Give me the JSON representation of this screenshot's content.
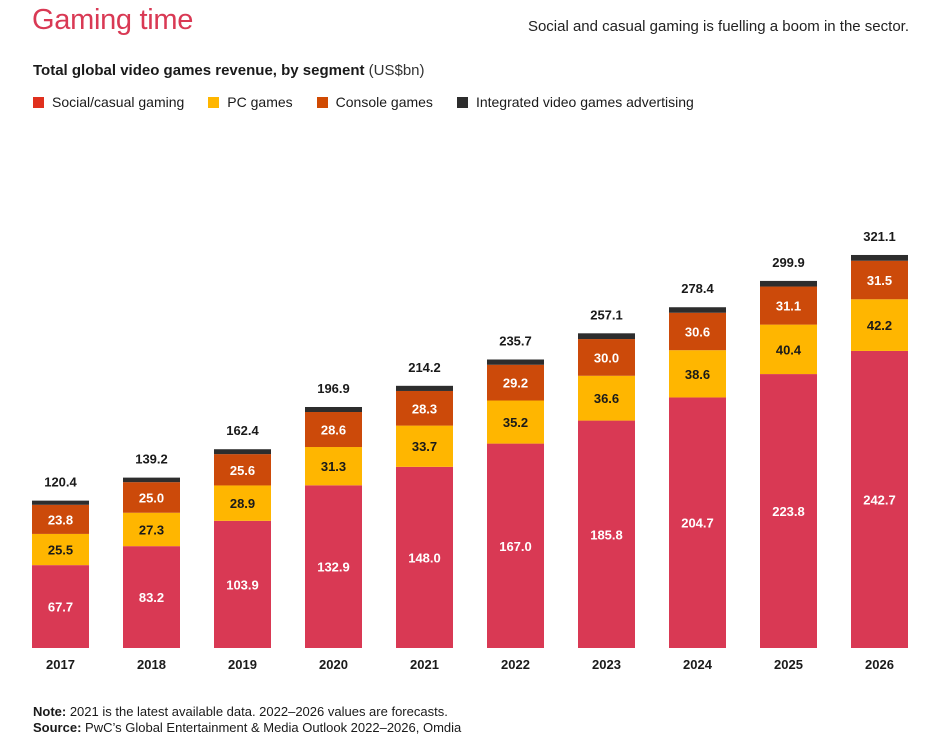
{
  "header": {
    "title": "Gaming time",
    "tagline": "Social and casual gaming is fuelling a boom in the sector."
  },
  "subtitle": {
    "main": "Total global video games revenue, by segment",
    "unit": "(US$bn)"
  },
  "colors": {
    "title": "#d93954",
    "social": "#d93954",
    "pc": "#ffb600",
    "console": "#d04a02",
    "advertising": "#2d2d2d"
  },
  "legend": [
    {
      "label": "Social/casual gaming",
      "color": "#e0301e"
    },
    {
      "label": "PC games",
      "color": "#ffb600"
    },
    {
      "label": "Console games",
      "color": "#d04a02"
    },
    {
      "label": "Integrated video games advertising",
      "color": "#2d2d2d"
    }
  ],
  "chart_data": {
    "type": "bar",
    "stacked": true,
    "categories": [
      "2017",
      "2018",
      "2019",
      "2020",
      "2021",
      "2022",
      "2023",
      "2024",
      "2025",
      "2026"
    ],
    "series": [
      {
        "name": "Social/casual gaming",
        "values": [
          67.7,
          83.2,
          103.9,
          132.9,
          148.0,
          167.0,
          185.8,
          204.7,
          223.8,
          242.7
        ],
        "labels": [
          "67.7",
          "83.2",
          "103.9",
          "132.9",
          "148.0",
          "167.0",
          "185.8",
          "204.7",
          "223.8",
          "242.7"
        ]
      },
      {
        "name": "PC games",
        "values": [
          25.5,
          27.3,
          28.9,
          31.3,
          33.7,
          35.2,
          36.6,
          38.6,
          40.4,
          42.2
        ],
        "labels": [
          "25.5",
          "27.3",
          "28.9",
          "31.3",
          "33.7",
          "35.2",
          "36.6",
          "38.6",
          "40.4",
          "42.2"
        ]
      },
      {
        "name": "Console games",
        "values": [
          23.8,
          25.0,
          25.6,
          28.6,
          28.3,
          29.2,
          30.0,
          30.6,
          31.1,
          31.5
        ],
        "labels": [
          "23.8",
          "25.0",
          "25.6",
          "28.6",
          "28.3",
          "29.2",
          "30.0",
          "30.6",
          "31.1",
          "31.5"
        ]
      },
      {
        "name": "Integrated video games advertising",
        "values": [
          3.4,
          3.7,
          4.0,
          4.1,
          4.2,
          4.3,
          4.7,
          4.5,
          4.6,
          4.7
        ]
      }
    ],
    "totals": [
      120.4,
      139.2,
      162.4,
      196.9,
      214.2,
      235.7,
      257.1,
      278.4,
      299.9,
      321.1
    ],
    "total_labels": [
      "120.4",
      "139.2",
      "162.4",
      "196.9",
      "214.2",
      "235.7",
      "257.1",
      "278.4",
      "299.9",
      "321.1"
    ],
    "ylim": [
      0,
      325
    ],
    "grid": false,
    "legend_position": "top-left"
  },
  "footnote": {
    "note_label": "Note:",
    "note_text": " 2021 is the latest available data. 2022–2026 values are forecasts.",
    "source_label": "Source:",
    "source_text": " PwC’s Global Entertainment & Media Outlook 2022–2026, Omdia"
  }
}
